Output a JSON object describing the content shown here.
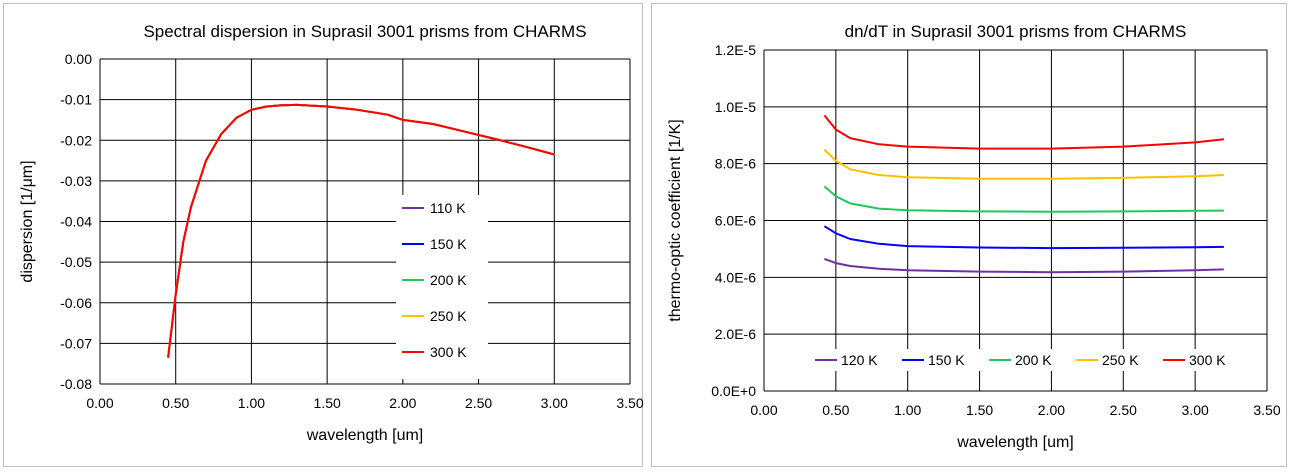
{
  "chart_data": [
    {
      "type": "line",
      "title": "Spectral dispersion in Suprasil 3001 prisms from CHARMS",
      "xlabel": "wavelength [um]",
      "ylabel": "dispersion [1/μm]",
      "xlim": [
        0.0,
        3.5
      ],
      "ylim": [
        -0.08,
        0.0
      ],
      "x_ticks": [
        0.0,
        0.5,
        1.0,
        1.5,
        2.0,
        2.5,
        3.0,
        3.5
      ],
      "x_tick_labels": [
        "0.00",
        "0.50",
        "1.00",
        "1.50",
        "2.00",
        "2.50",
        "3.00",
        "3.50"
      ],
      "y_ticks": [
        0.0,
        -0.01,
        -0.02,
        -0.03,
        -0.04,
        -0.05,
        -0.06,
        -0.07,
        -0.08
      ],
      "y_tick_labels": [
        "0.00",
        "-0.01",
        "-0.02",
        "-0.03",
        "-0.04",
        "-0.05",
        "-0.06",
        "-0.07",
        "-0.08"
      ],
      "grid": true,
      "legend_position": "inside-lower-right",
      "series": [
        {
          "name": "110 K",
          "color": "#7030a0",
          "x": [
            0.45,
            0.5,
            0.55,
            0.6,
            0.7,
            0.8,
            0.9,
            1.0,
            1.1,
            1.2,
            1.3,
            1.5,
            1.7,
            1.9,
            2.0,
            2.2,
            2.4,
            2.6,
            2.8,
            3.0
          ],
          "y": [
            -0.0735,
            -0.058,
            -0.045,
            -0.0365,
            -0.025,
            -0.0185,
            -0.0145,
            -0.0125,
            -0.0117,
            -0.0114,
            -0.0113,
            -0.0117,
            -0.0125,
            -0.0137,
            -0.015,
            -0.016,
            -0.0178,
            -0.0196,
            -0.0215,
            -0.0235
          ]
        },
        {
          "name": "150 K",
          "color": "#0000ff",
          "x": [
            0.45,
            0.5,
            0.55,
            0.6,
            0.7,
            0.8,
            0.9,
            1.0,
            1.1,
            1.2,
            1.3,
            1.5,
            1.7,
            1.9,
            2.0,
            2.2,
            2.4,
            2.6,
            2.8,
            3.0
          ],
          "y": [
            -0.0735,
            -0.058,
            -0.045,
            -0.0365,
            -0.025,
            -0.0185,
            -0.0145,
            -0.0125,
            -0.0117,
            -0.0114,
            -0.0113,
            -0.0117,
            -0.0125,
            -0.0137,
            -0.015,
            -0.016,
            -0.0178,
            -0.0196,
            -0.0215,
            -0.0235
          ]
        },
        {
          "name": "200 K",
          "color": "#22c55e",
          "x": [
            0.45,
            0.5,
            0.55,
            0.6,
            0.7,
            0.8,
            0.9,
            1.0,
            1.1,
            1.2,
            1.3,
            1.5,
            1.7,
            1.9,
            2.0,
            2.2,
            2.4,
            2.6,
            2.8,
            3.0
          ],
          "y": [
            -0.0735,
            -0.058,
            -0.045,
            -0.0365,
            -0.025,
            -0.0185,
            -0.0145,
            -0.0125,
            -0.0117,
            -0.0114,
            -0.0113,
            -0.0117,
            -0.0125,
            -0.0137,
            -0.015,
            -0.016,
            -0.0178,
            -0.0196,
            -0.0215,
            -0.0235
          ]
        },
        {
          "name": "250 K",
          "color": "#ffc000",
          "x": [
            0.45,
            0.5,
            0.55,
            0.6,
            0.7,
            0.8,
            0.9,
            1.0,
            1.1,
            1.2,
            1.3,
            1.5,
            1.7,
            1.9,
            2.0,
            2.2,
            2.4,
            2.6,
            2.8,
            3.0
          ],
          "y": [
            -0.0735,
            -0.058,
            -0.045,
            -0.0365,
            -0.025,
            -0.0185,
            -0.0145,
            -0.0125,
            -0.0117,
            -0.0114,
            -0.0113,
            -0.0117,
            -0.0125,
            -0.0137,
            -0.015,
            -0.016,
            -0.0178,
            -0.0196,
            -0.0215,
            -0.0235
          ]
        },
        {
          "name": "300 K",
          "color": "#ff0000",
          "x": [
            0.45,
            0.5,
            0.55,
            0.6,
            0.7,
            0.8,
            0.9,
            1.0,
            1.1,
            1.2,
            1.3,
            1.5,
            1.7,
            1.9,
            2.0,
            2.2,
            2.4,
            2.6,
            2.8,
            3.0
          ],
          "y": [
            -0.0735,
            -0.058,
            -0.045,
            -0.0365,
            -0.025,
            -0.0185,
            -0.0145,
            -0.0125,
            -0.0117,
            -0.0114,
            -0.0113,
            -0.0117,
            -0.0125,
            -0.0137,
            -0.015,
            -0.016,
            -0.0178,
            -0.0196,
            -0.0215,
            -0.0235
          ]
        }
      ]
    },
    {
      "type": "line",
      "title": "dn/dT in Suprasil 3001 prisms from CHARMS",
      "xlabel": "wavelength [um]",
      "ylabel": "thermo-optic coefficient [1/K]",
      "xlim": [
        0.0,
        3.5
      ],
      "ylim": [
        0.0,
        1.2e-05
      ],
      "x_ticks": [
        0.0,
        0.5,
        1.0,
        1.5,
        2.0,
        2.5,
        3.0,
        3.5
      ],
      "x_tick_labels": [
        "0.00",
        "0.50",
        "1.00",
        "1.50",
        "2.00",
        "2.50",
        "3.00",
        "3.50"
      ],
      "y_ticks": [
        0.0,
        2e-06,
        4e-06,
        6e-06,
        8e-06,
        1e-05,
        1.2e-05
      ],
      "y_tick_labels": [
        "0.0E+0",
        "2.0E-6",
        "4.0E-6",
        "6.0E-6",
        "8.0E-6",
        "1.0E-5",
        "1.2E-5"
      ],
      "grid": true,
      "legend_position": "bottom-inside",
      "series": [
        {
          "name": "120 K",
          "color": "#7030a0",
          "x": [
            0.42,
            0.5,
            0.6,
            0.8,
            1.0,
            1.5,
            2.0,
            2.5,
            3.0,
            3.2
          ],
          "y": [
            4.65e-06,
            4.5e-06,
            4.4e-06,
            4.3e-06,
            4.25e-06,
            4.2e-06,
            4.18e-06,
            4.2e-06,
            4.25e-06,
            4.28e-06
          ]
        },
        {
          "name": "150 K",
          "color": "#0000ff",
          "x": [
            0.42,
            0.5,
            0.6,
            0.8,
            1.0,
            1.5,
            2.0,
            2.5,
            3.0,
            3.2
          ],
          "y": [
            5.8e-06,
            5.55e-06,
            5.35e-06,
            5.18e-06,
            5.1e-06,
            5.05e-06,
            5.03e-06,
            5.04e-06,
            5.06e-06,
            5.07e-06
          ]
        },
        {
          "name": "200 K",
          "color": "#22c55e",
          "x": [
            0.42,
            0.5,
            0.6,
            0.8,
            1.0,
            1.5,
            2.0,
            2.5,
            3.0,
            3.2
          ],
          "y": [
            7.2e-06,
            6.85e-06,
            6.6e-06,
            6.42e-06,
            6.36e-06,
            6.32e-06,
            6.31e-06,
            6.32e-06,
            6.34e-06,
            6.35e-06
          ]
        },
        {
          "name": "250 K",
          "color": "#ffc000",
          "x": [
            0.42,
            0.5,
            0.6,
            0.8,
            1.0,
            1.5,
            2.0,
            2.5,
            3.0,
            3.2
          ],
          "y": [
            8.5e-06,
            8.1e-06,
            7.8e-06,
            7.6e-06,
            7.52e-06,
            7.47e-06,
            7.47e-06,
            7.5e-06,
            7.56e-06,
            7.6e-06
          ]
        },
        {
          "name": "300 K",
          "color": "#ff0000",
          "x": [
            0.42,
            0.5,
            0.6,
            0.8,
            1.0,
            1.5,
            2.0,
            2.5,
            3.0,
            3.2
          ],
          "y": [
            9.7e-06,
            9.2e-06,
            8.9e-06,
            8.68e-06,
            8.6e-06,
            8.53e-06,
            8.53e-06,
            8.6e-06,
            8.75e-06,
            8.86e-06
          ]
        }
      ]
    }
  ]
}
